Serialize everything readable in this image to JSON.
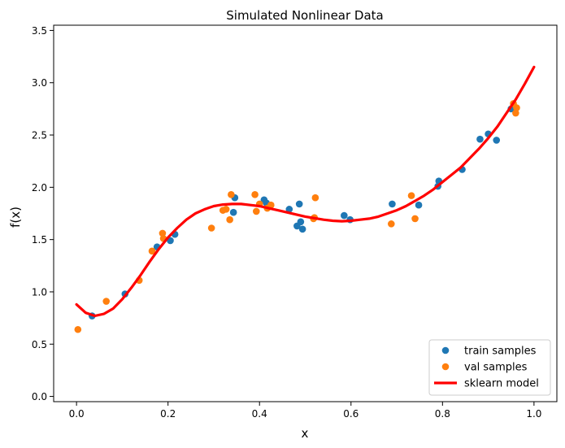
{
  "chart_data": {
    "type": "scatter",
    "title": "Simulated Nonlinear Data",
    "xlabel": "x",
    "ylabel": "f(x)",
    "xlim": [
      -0.05,
      1.05
    ],
    "ylim": [
      -0.05,
      3.55
    ],
    "xticks": [
      "0.0",
      "0.2",
      "0.4",
      "0.6",
      "0.8",
      "1.0"
    ],
    "yticks": [
      "0.0",
      "0.5",
      "1.0",
      "1.5",
      "2.0",
      "2.5",
      "3.0",
      "3.5"
    ],
    "grid": false,
    "legend_position": "lower-right",
    "series": [
      {
        "name": "train samples",
        "kind": "scatter",
        "color": "#1f77b4",
        "points": [
          [
            0.034,
            0.77
          ],
          [
            0.106,
            0.98
          ],
          [
            0.176,
            1.43
          ],
          [
            0.205,
            1.49
          ],
          [
            0.215,
            1.55
          ],
          [
            0.343,
            1.76
          ],
          [
            0.346,
            1.9
          ],
          [
            0.41,
            1.88
          ],
          [
            0.415,
            1.85
          ],
          [
            0.465,
            1.79
          ],
          [
            0.482,
            1.63
          ],
          [
            0.487,
            1.84
          ],
          [
            0.49,
            1.67
          ],
          [
            0.494,
            1.6
          ],
          [
            0.585,
            1.73
          ],
          [
            0.598,
            1.69
          ],
          [
            0.69,
            1.84
          ],
          [
            0.748,
            1.83
          ],
          [
            0.79,
            2.01
          ],
          [
            0.792,
            2.06
          ],
          [
            0.843,
            2.17
          ],
          [
            0.882,
            2.46
          ],
          [
            0.9,
            2.51
          ],
          [
            0.918,
            2.45
          ],
          [
            0.95,
            2.75
          ]
        ]
      },
      {
        "name": "val samples",
        "kind": "scatter",
        "color": "#ff7f0e",
        "points": [
          [
            0.003,
            0.64
          ],
          [
            0.065,
            0.91
          ],
          [
            0.137,
            1.11
          ],
          [
            0.165,
            1.39
          ],
          [
            0.188,
            1.56
          ],
          [
            0.19,
            1.51
          ],
          [
            0.295,
            1.61
          ],
          [
            0.32,
            1.78
          ],
          [
            0.327,
            1.79
          ],
          [
            0.335,
            1.69
          ],
          [
            0.338,
            1.93
          ],
          [
            0.39,
            1.93
          ],
          [
            0.393,
            1.77
          ],
          [
            0.4,
            1.84
          ],
          [
            0.417,
            1.8
          ],
          [
            0.425,
            1.83
          ],
          [
            0.518,
            1.7
          ],
          [
            0.52,
            1.71
          ],
          [
            0.522,
            1.9
          ],
          [
            0.688,
            1.65
          ],
          [
            0.732,
            1.92
          ],
          [
            0.74,
            1.7
          ],
          [
            0.955,
            2.8
          ],
          [
            0.96,
            2.71
          ],
          [
            0.962,
            2.76
          ]
        ]
      },
      {
        "name": "sklearn model",
        "kind": "line",
        "color": "#ff0000",
        "points": [
          [
            0.0,
            0.88
          ],
          [
            0.02,
            0.8
          ],
          [
            0.04,
            0.77
          ],
          [
            0.06,
            0.79
          ],
          [
            0.08,
            0.84
          ],
          [
            0.1,
            0.93
          ],
          [
            0.12,
            1.04
          ],
          [
            0.14,
            1.16
          ],
          [
            0.16,
            1.29
          ],
          [
            0.18,
            1.41
          ],
          [
            0.2,
            1.52
          ],
          [
            0.22,
            1.61
          ],
          [
            0.24,
            1.69
          ],
          [
            0.26,
            1.75
          ],
          [
            0.28,
            1.79
          ],
          [
            0.3,
            1.82
          ],
          [
            0.32,
            1.835
          ],
          [
            0.34,
            1.84
          ],
          [
            0.36,
            1.84
          ],
          [
            0.38,
            1.83
          ],
          [
            0.4,
            1.82
          ],
          [
            0.42,
            1.8
          ],
          [
            0.44,
            1.78
          ],
          [
            0.46,
            1.76
          ],
          [
            0.48,
            1.74
          ],
          [
            0.5,
            1.72
          ],
          [
            0.52,
            1.705
          ],
          [
            0.54,
            1.69
          ],
          [
            0.56,
            1.68
          ],
          [
            0.58,
            1.675
          ],
          [
            0.6,
            1.68
          ],
          [
            0.62,
            1.69
          ],
          [
            0.64,
            1.7
          ],
          [
            0.66,
            1.72
          ],
          [
            0.68,
            1.75
          ],
          [
            0.7,
            1.78
          ],
          [
            0.72,
            1.82
          ],
          [
            0.74,
            1.87
          ],
          [
            0.76,
            1.92
          ],
          [
            0.78,
            1.98
          ],
          [
            0.8,
            2.05
          ],
          [
            0.82,
            2.12
          ],
          [
            0.84,
            2.19
          ],
          [
            0.86,
            2.28
          ],
          [
            0.88,
            2.37
          ],
          [
            0.9,
            2.47
          ],
          [
            0.92,
            2.58
          ],
          [
            0.94,
            2.71
          ],
          [
            0.96,
            2.84
          ],
          [
            0.98,
            2.99
          ],
          [
            1.0,
            3.15
          ]
        ]
      }
    ]
  }
}
